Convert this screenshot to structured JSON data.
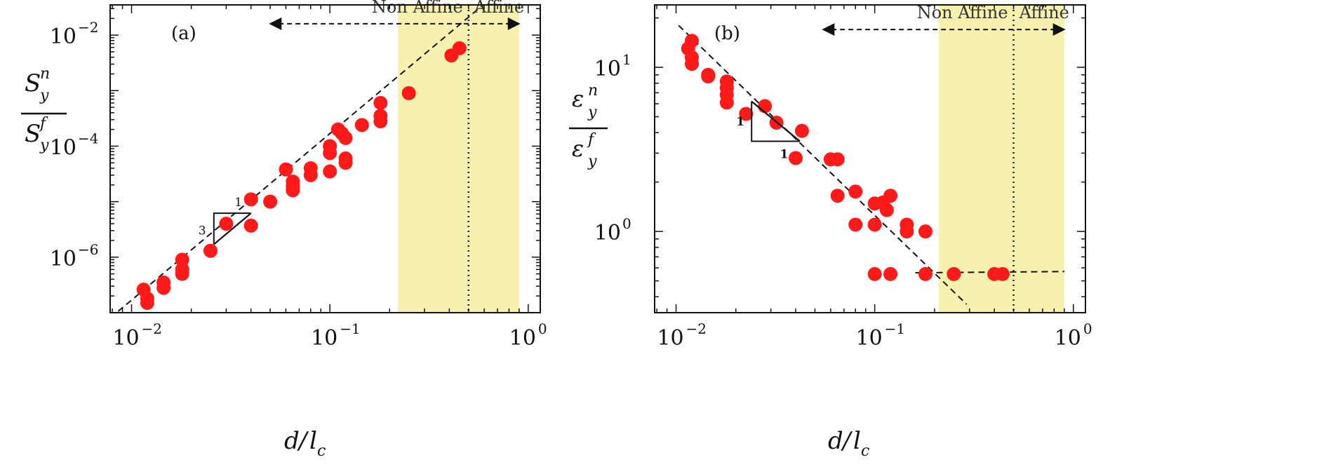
{
  "chart_data": [
    {
      "type": "scatter",
      "panel_label": "(a)",
      "xlabel": "d/l_c",
      "ylabel": "S_y^n / S_y^f",
      "xscale": "log",
      "yscale": "log",
      "xlim": [
        0.0078,
        1.15
      ],
      "ylim": [
        1e-07,
        0.035
      ],
      "xticks": [
        {
          "value": 0.01,
          "base": "10",
          "exp": "−2"
        },
        {
          "value": 0.1,
          "base": "10",
          "exp": "−1"
        },
        {
          "value": 1,
          "base": "10",
          "exp": "0"
        }
      ],
      "yticks": [
        {
          "value": 1e-06,
          "base": "10",
          "exp": "−6"
        },
        {
          "value": 0.0001,
          "base": "10",
          "exp": "−4"
        },
        {
          "value": 0.01,
          "base": "10",
          "exp": "−2"
        }
      ],
      "grid": false,
      "marker_color": "#ff1a1a",
      "shaded_region": {
        "x": [
          0.22,
          0.9
        ],
        "color": "#f7f1b0"
      },
      "vertical_line": {
        "x": 0.5,
        "style": "dotted"
      },
      "regime_labels": {
        "non_affine": "Non Affine",
        "affine": "Affine"
      },
      "regime_arrow": {
        "x": [
          0.05,
          0.9
        ],
        "y": 0.016,
        "split_x": 0.5
      },
      "slope_annotation": {
        "rise": "3",
        "run": "1",
        "slope": 3
      },
      "fit_line": {
        "slope": 3,
        "x": [
          0.0078,
          0.6
        ],
        "y": [
          8e-08,
          0.0364
        ]
      },
      "series": [
        {
          "points": [
            [
              0.0115,
              2.6e-07
            ],
            [
              0.012,
              1.8e-07
            ],
            [
              0.012,
              1.5e-07
            ],
            [
              0.0145,
              3.5e-07
            ],
            [
              0.0145,
              2.8e-07
            ],
            [
              0.018,
              9e-07
            ],
            [
              0.018,
              6e-07
            ],
            [
              0.018,
              5e-07
            ],
            [
              0.025,
              1.3e-06
            ],
            [
              0.03,
              4e-06
            ],
            [
              0.04,
              1.1e-05
            ],
            [
              0.04,
              3.7e-06
            ],
            [
              0.05,
              1e-05
            ],
            [
              0.06,
              3.8e-05
            ],
            [
              0.065,
              2.3e-05
            ],
            [
              0.065,
              1.9e-05
            ],
            [
              0.065,
              1.6e-05
            ],
            [
              0.08,
              4e-05
            ],
            [
              0.08,
              3e-05
            ],
            [
              0.1,
              0.0001
            ],
            [
              0.1,
              7.5e-05
            ],
            [
              0.1,
              3.5e-05
            ],
            [
              0.11,
              0.0002
            ],
            [
              0.115,
              0.00017
            ],
            [
              0.12,
              0.00014
            ],
            [
              0.12,
              6e-05
            ],
            [
              0.12,
              5e-05
            ],
            [
              0.145,
              0.00024
            ],
            [
              0.18,
              0.0006
            ],
            [
              0.18,
              0.00035
            ],
            [
              0.18,
              0.00028
            ],
            [
              0.25,
              0.0009
            ],
            [
              0.41,
              0.0043
            ],
            [
              0.45,
              0.0058
            ]
          ]
        }
      ]
    },
    {
      "type": "scatter",
      "panel_label": "(b)",
      "xlabel": "d/l_c",
      "ylabel": "ε_y^n / ε_y^f",
      "xscale": "log",
      "yscale": "log",
      "xlim": [
        0.0078,
        1.15
      ],
      "ylim": [
        0.32,
        24
      ],
      "xticks": [
        {
          "value": 0.01,
          "base": "10",
          "exp": "−2"
        },
        {
          "value": 0.1,
          "base": "10",
          "exp": "−1"
        },
        {
          "value": 1,
          "base": "10",
          "exp": "0"
        }
      ],
      "yticks": [
        {
          "value": 1,
          "base": "10",
          "exp": "0"
        },
        {
          "value": 10,
          "base": "10",
          "exp": "1"
        }
      ],
      "grid": false,
      "marker_color": "#ff1a1a",
      "shaded_region": {
        "x": [
          0.21,
          0.9
        ],
        "color": "#f7f1b0"
      },
      "vertical_line": {
        "x": 0.5,
        "style": "dotted"
      },
      "regime_labels": {
        "non_affine": "Non Affine",
        "affine": "Affine"
      },
      "regime_arrow": {
        "x": [
          0.055,
          0.9
        ],
        "y": 17,
        "split_x": 0.5
      },
      "slope_annotation": {
        "rise": "1",
        "run": "1",
        "slope": -1
      },
      "fit_line": {
        "slope": -1,
        "x": [
          0.0103,
          0.29
        ],
        "y": [
          18,
          0.36
        ]
      },
      "plateau_line": {
        "x": [
          0.16,
          0.9
        ],
        "y": [
          0.56,
          0.57
        ]
      },
      "series": [
        {
          "points": [
            [
              0.0115,
              13
            ],
            [
              0.012,
              14.5
            ],
            [
              0.012,
              11.5
            ],
            [
              0.012,
              10.5
            ],
            [
              0.0145,
              9
            ],
            [
              0.0145,
              8.8
            ],
            [
              0.018,
              8.2
            ],
            [
              0.018,
              7.5
            ],
            [
              0.018,
              6.8
            ],
            [
              0.018,
              6.1
            ],
            [
              0.0225,
              5.2
            ],
            [
              0.028,
              5.8
            ],
            [
              0.032,
              4.6
            ],
            [
              0.043,
              4.1
            ],
            [
              0.04,
              2.8
            ],
            [
              0.06,
              2.75
            ],
            [
              0.065,
              2.75
            ],
            [
              0.065,
              1.65
            ],
            [
              0.08,
              1.75
            ],
            [
              0.08,
              1.1
            ],
            [
              0.1,
              1.48
            ],
            [
              0.1,
              1.1
            ],
            [
              0.1,
              0.55
            ],
            [
              0.11,
              1.5
            ],
            [
              0.115,
              1.35
            ],
            [
              0.12,
              1.65
            ],
            [
              0.12,
              0.55
            ],
            [
              0.145,
              1.1
            ],
            [
              0.145,
              1.0
            ],
            [
              0.18,
              1.0
            ],
            [
              0.18,
              0.55
            ],
            [
              0.25,
              0.55
            ],
            [
              0.4,
              0.55
            ],
            [
              0.44,
              0.55
            ]
          ]
        }
      ]
    }
  ]
}
